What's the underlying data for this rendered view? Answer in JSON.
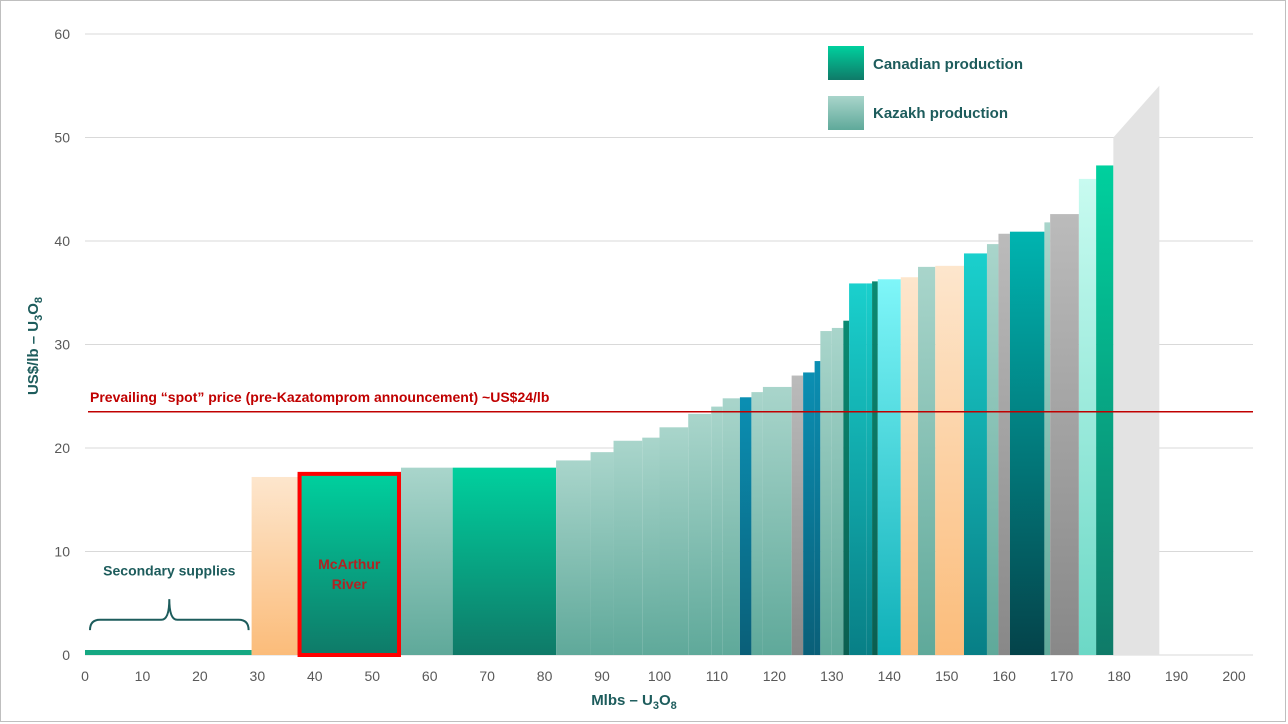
{
  "chart_data": {
    "type": "bar",
    "subtype": "cost-curve",
    "title": "",
    "xlabel": "Mlbs – U3O8",
    "xlabel_parts": [
      "Mlbs – U",
      "3",
      "O",
      "8"
    ],
    "ylabel": "US$/lb – U3O8",
    "ylabel_parts": [
      "US$/lb – U",
      "3",
      "O",
      "8"
    ],
    "xlim": [
      0,
      200
    ],
    "ylim": [
      0,
      60
    ],
    "x_ticks": [
      0,
      10,
      20,
      30,
      40,
      50,
      60,
      70,
      80,
      90,
      100,
      110,
      120,
      130,
      140,
      150,
      160,
      170,
      180,
      190,
      200
    ],
    "y_ticks": [
      0,
      10,
      20,
      30,
      40,
      50,
      60
    ],
    "grid": "horizontal",
    "legend_position": "top-right",
    "legend": [
      {
        "name": "Canadian production",
        "key": "canadian"
      },
      {
        "name": "Kazakh production",
        "key": "kazakh"
      }
    ],
    "colors": {
      "canadian_top": "#00d09e",
      "canadian_bottom": "#0f7a68",
      "kazakh_top": "#a9d5cb",
      "kazakh_bottom": "#5fa99a",
      "other_peach_top": "#fde6cd",
      "other_peach_bottom": "#fbbc7a",
      "teal_top": "#1ad0cd",
      "teal_bottom": "#087f86",
      "cyan_top": "#7ff6f9",
      "cyan_bottom": "#0fb0b8",
      "darkteal_top": "#00b4b0",
      "darkteal_bottom": "#04434a",
      "blue_top": "#0b8fb3",
      "blue_bottom": "#0a5f78",
      "deepgreen_top": "#0a8a72",
      "deepgreen_bottom": "#0a5e50",
      "grey_top": "#bbbbbb",
      "grey_bottom": "#888888",
      "mint_top": "#c8fbf0",
      "mint_bottom": "#6cd8c6",
      "secondary": "#15a882",
      "spot_line": "#c00000",
      "highlight": "#ff0000",
      "future": "#e3e3e3"
    },
    "bars": [
      {
        "x0": 0,
        "x1": 29,
        "value": 0.4,
        "group": "secondary"
      },
      {
        "x0": 29,
        "x1": 37,
        "value": 17.2,
        "group": "other_peach"
      },
      {
        "x0": 37,
        "x1": 55,
        "value": 17.5,
        "group": "canadian",
        "label": "McArthur River"
      },
      {
        "x0": 55,
        "x1": 64,
        "value": 18.1,
        "group": "kazakh"
      },
      {
        "x0": 64,
        "x1": 82,
        "value": 18.1,
        "group": "canadian"
      },
      {
        "x0": 82,
        "x1": 88,
        "value": 18.8,
        "group": "kazakh"
      },
      {
        "x0": 88,
        "x1": 92,
        "value": 19.6,
        "group": "kazakh"
      },
      {
        "x0": 92,
        "x1": 97,
        "value": 20.7,
        "group": "kazakh"
      },
      {
        "x0": 97,
        "x1": 100,
        "value": 21.0,
        "group": "kazakh"
      },
      {
        "x0": 100,
        "x1": 105,
        "value": 22.0,
        "group": "kazakh"
      },
      {
        "x0": 105,
        "x1": 109,
        "value": 23.3,
        "group": "kazakh"
      },
      {
        "x0": 109,
        "x1": 111,
        "value": 24.0,
        "group": "kazakh"
      },
      {
        "x0": 111,
        "x1": 114,
        "value": 24.8,
        "group": "kazakh"
      },
      {
        "x0": 114,
        "x1": 116,
        "value": 24.9,
        "group": "blue"
      },
      {
        "x0": 116,
        "x1": 118,
        "value": 25.4,
        "group": "kazakh"
      },
      {
        "x0": 118,
        "x1": 123,
        "value": 25.9,
        "group": "kazakh"
      },
      {
        "x0": 123,
        "x1": 125,
        "value": 27.0,
        "group": "grey"
      },
      {
        "x0": 125,
        "x1": 127,
        "value": 27.3,
        "group": "blue"
      },
      {
        "x0": 127,
        "x1": 128,
        "value": 28.4,
        "group": "blue"
      },
      {
        "x0": 128,
        "x1": 130,
        "value": 31.3,
        "group": "kazakh"
      },
      {
        "x0": 130,
        "x1": 132,
        "value": 31.6,
        "group": "kazakh"
      },
      {
        "x0": 132,
        "x1": 133,
        "value": 32.3,
        "group": "deepgreen"
      },
      {
        "x0": 133,
        "x1": 136,
        "value": 35.9,
        "group": "teal"
      },
      {
        "x0": 136,
        "x1": 137,
        "value": 35.9,
        "group": "teal"
      },
      {
        "x0": 137,
        "x1": 138,
        "value": 36.1,
        "group": "deepgreen"
      },
      {
        "x0": 138,
        "x1": 142,
        "value": 36.3,
        "group": "cyan"
      },
      {
        "x0": 142,
        "x1": 145,
        "value": 36.5,
        "group": "other_peach"
      },
      {
        "x0": 145,
        "x1": 148,
        "value": 37.5,
        "group": "kazakh"
      },
      {
        "x0": 148,
        "x1": 153,
        "value": 37.6,
        "group": "other_peach"
      },
      {
        "x0": 153,
        "x1": 157,
        "value": 38.8,
        "group": "teal"
      },
      {
        "x0": 157,
        "x1": 159,
        "value": 39.7,
        "group": "kazakh"
      },
      {
        "x0": 159,
        "x1": 161,
        "value": 40.7,
        "group": "grey"
      },
      {
        "x0": 161,
        "x1": 167,
        "value": 40.9,
        "group": "darkteal"
      },
      {
        "x0": 167,
        "x1": 168,
        "value": 41.8,
        "group": "kazakh"
      },
      {
        "x0": 168,
        "x1": 173,
        "value": 42.6,
        "group": "grey"
      },
      {
        "x0": 173,
        "x1": 176,
        "value": 46.0,
        "group": "mint"
      },
      {
        "x0": 176,
        "x1": 179,
        "value": 47.3,
        "group": "canadian"
      }
    ],
    "future_wedge": {
      "x0": 179,
      "x1": 187,
      "y_start": 50,
      "y_end": 55
    },
    "spot_price": {
      "value": 23.5,
      "label": "Prevailing “spot” price (pre-Kazatomprom announcement) ~US$24/lb"
    },
    "highlight_label_lines": [
      "McArthur",
      "River"
    ],
    "secondary": {
      "x0": 0,
      "x1": 29,
      "label": "Secondary supplies"
    }
  }
}
